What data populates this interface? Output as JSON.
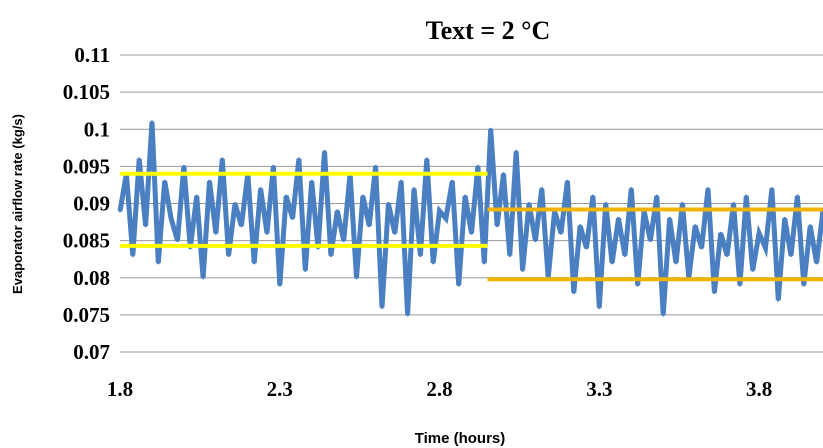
{
  "chart_data": {
    "type": "line",
    "title": "Text = 2 °C",
    "xlabel": "Time (hours)",
    "ylabel": "Evaporator airflow rate (kg/s)",
    "xlim": [
      1.8,
      4.0
    ],
    "ylim": [
      0.07,
      0.11
    ],
    "x_ticks": [
      "1.8",
      "2.3",
      "2.8",
      "3.3",
      "3.8"
    ],
    "y_ticks": [
      "0.07",
      "0.075",
      "0.08",
      "0.085",
      "0.09",
      "0.095",
      "0.1",
      "0.105",
      "0.11"
    ],
    "grid": "horizontal",
    "legend": "none",
    "series": [
      {
        "color": "#4a7fc1",
        "x": [
          1.8,
          1.82,
          1.84,
          1.86,
          1.88,
          1.9,
          1.92,
          1.94,
          1.96,
          1.98,
          2.0,
          2.02,
          2.04,
          2.06,
          2.08,
          2.1,
          2.12,
          2.14,
          2.16,
          2.18,
          2.2,
          2.22,
          2.24,
          2.26,
          2.28,
          2.3,
          2.32,
          2.34,
          2.36,
          2.38,
          2.4,
          2.42,
          2.44,
          2.46,
          2.48,
          2.5,
          2.52,
          2.54,
          2.56,
          2.58,
          2.6,
          2.62,
          2.64,
          2.66,
          2.68,
          2.7,
          2.72,
          2.74,
          2.76,
          2.78,
          2.8,
          2.82,
          2.84,
          2.86,
          2.88,
          2.9,
          2.92,
          2.94,
          2.96,
          2.98,
          3.0,
          3.02,
          3.04,
          3.06,
          3.08,
          3.1,
          3.12,
          3.14,
          3.16,
          3.18,
          3.2,
          3.22,
          3.24,
          3.26,
          3.28,
          3.3,
          3.32,
          3.34,
          3.36,
          3.38,
          3.4,
          3.42,
          3.44,
          3.46,
          3.48,
          3.5,
          3.52,
          3.54,
          3.56,
          3.58,
          3.6,
          3.62,
          3.64,
          3.66,
          3.68,
          3.7,
          3.72,
          3.74,
          3.76,
          3.78,
          3.8,
          3.82,
          3.84,
          3.86,
          3.88,
          3.9,
          3.92,
          3.94,
          3.96,
          3.98,
          4.0
        ],
        "values": [
          0.089,
          0.094,
          0.083,
          0.096,
          0.087,
          0.101,
          0.082,
          0.093,
          0.088,
          0.085,
          0.095,
          0.084,
          0.091,
          0.08,
          0.093,
          0.086,
          0.096,
          0.083,
          0.09,
          0.087,
          0.094,
          0.082,
          0.092,
          0.086,
          0.095,
          0.079,
          0.091,
          0.088,
          0.096,
          0.081,
          0.093,
          0.084,
          0.097,
          0.083,
          0.089,
          0.085,
          0.094,
          0.08,
          0.091,
          0.087,
          0.095,
          0.076,
          0.09,
          0.086,
          0.093,
          0.075,
          0.092,
          0.083,
          0.096,
          0.082,
          0.089,
          0.088,
          0.093,
          0.079,
          0.091,
          0.086,
          0.095,
          0.082,
          0.1,
          0.087,
          0.094,
          0.083,
          0.097,
          0.081,
          0.09,
          0.085,
          0.092,
          0.08,
          0.089,
          0.086,
          0.093,
          0.078,
          0.087,
          0.084,
          0.091,
          0.076,
          0.09,
          0.082,
          0.088,
          0.083,
          0.092,
          0.079,
          0.089,
          0.085,
          0.091,
          0.075,
          0.088,
          0.082,
          0.09,
          0.08,
          0.087,
          0.084,
          0.092,
          0.078,
          0.086,
          0.083,
          0.09,
          0.079,
          0.091,
          0.081,
          0.086,
          0.084,
          0.092,
          0.077,
          0.088,
          0.083,
          0.091,
          0.079,
          0.087,
          0.082,
          0.089
        ]
      }
    ],
    "reference_lines": [
      {
        "color": "#ffff00",
        "x": [
          1.8,
          2.95
        ],
        "y": 0.094
      },
      {
        "color": "#ffff00",
        "x": [
          1.8,
          2.95
        ],
        "y": 0.0843
      },
      {
        "color": "#f0b400",
        "x": [
          2.95,
          4.0
        ],
        "y": 0.0892
      },
      {
        "color": "#f0b400",
        "x": [
          2.95,
          4.0
        ],
        "y": 0.0798
      }
    ]
  }
}
